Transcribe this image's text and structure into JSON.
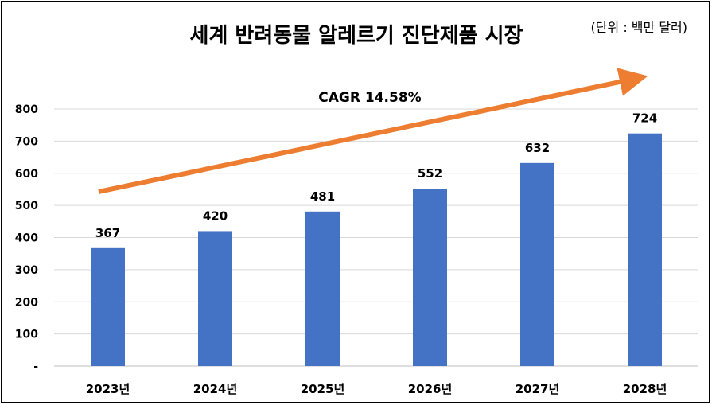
{
  "chart_data": {
    "type": "bar",
    "title": "세계 반려동물 알레르기 진단제품 시장",
    "unit_note": "(단위 : 백만 달러)",
    "categories": [
      "2023년",
      "2024년",
      "2025년",
      "2026년",
      "2027년",
      "2028년"
    ],
    "values": [
      367,
      420,
      481,
      552,
      632,
      724
    ],
    "data_labels": [
      "367",
      "420",
      "481",
      "552",
      "632",
      "724"
    ],
    "yticks": [
      "-",
      "100",
      "200",
      "300",
      "400",
      "500",
      "600",
      "700",
      "800"
    ],
    "ylim": [
      0,
      800
    ],
    "ytick_step": 100,
    "grid": true,
    "legend": "none",
    "annotation": "CAGR 14.58%",
    "colors": {
      "bar": "#4472C4",
      "arrow": "#ED7D31",
      "grid": "#D9D9D9",
      "text": "#000000"
    }
  }
}
